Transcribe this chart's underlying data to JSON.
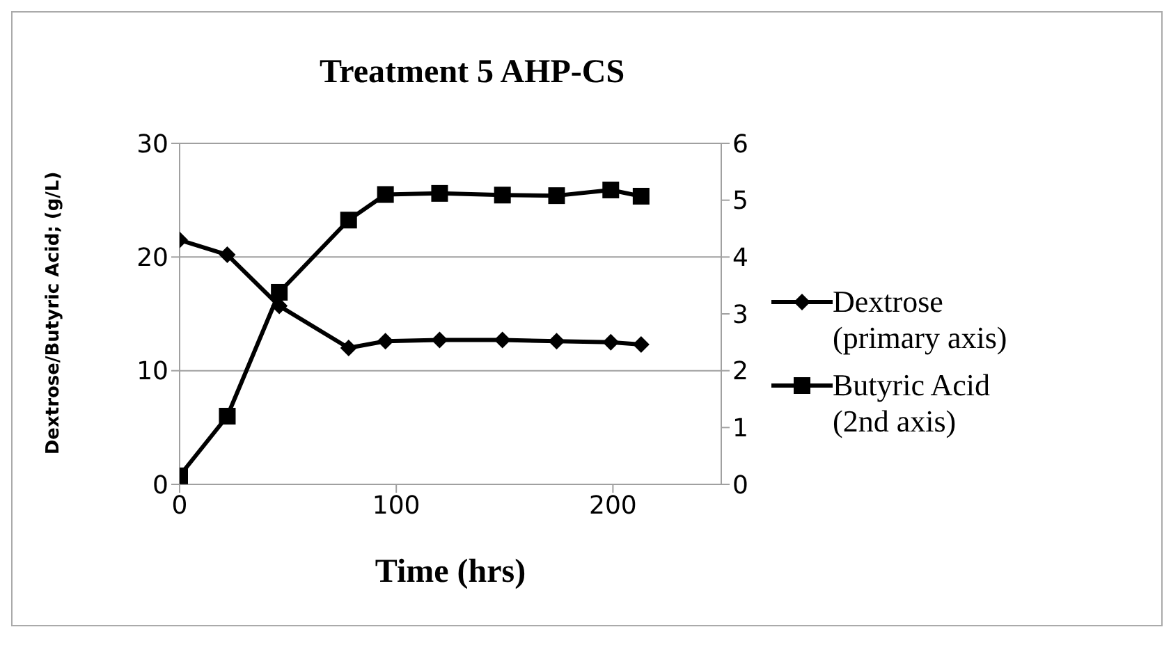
{
  "chart_data": {
    "type": "line",
    "title": "Treatment 5 AHP-CS",
    "xlabel": "Time (hrs)",
    "ylabel": "Dextrose/Butyric Acid; (g/L)",
    "x": [
      0,
      22,
      46,
      78,
      95,
      120,
      149,
      174,
      199,
      213
    ],
    "series": [
      {
        "name": "Dextrose (primary axis)",
        "color": "#000000",
        "marker": "diamond",
        "values": [
          21.5,
          20.2,
          15.7,
          12.0,
          12.6,
          12.7,
          12.7,
          12.6,
          12.5,
          12.3
        ]
      },
      {
        "name": "Butyric Acid (2nd axis)",
        "color": "#000000",
        "marker": "square",
        "axis": "y2",
        "values": [
          0.15,
          1.2,
          3.38,
          4.65,
          5.1,
          5.12,
          5.09,
          5.08,
          5.18,
          5.07
        ]
      }
    ],
    "xlim": [
      0,
      250
    ],
    "xticks": [
      0,
      100,
      200
    ],
    "ylim": [
      0,
      30
    ],
    "yticks": [
      0,
      10,
      20,
      30
    ],
    "y2lim": [
      0,
      6
    ],
    "y2ticks": [
      0,
      1,
      2,
      3,
      4,
      5,
      6
    ],
    "grid": "y",
    "legend": "right",
    "line_style": "solid"
  }
}
